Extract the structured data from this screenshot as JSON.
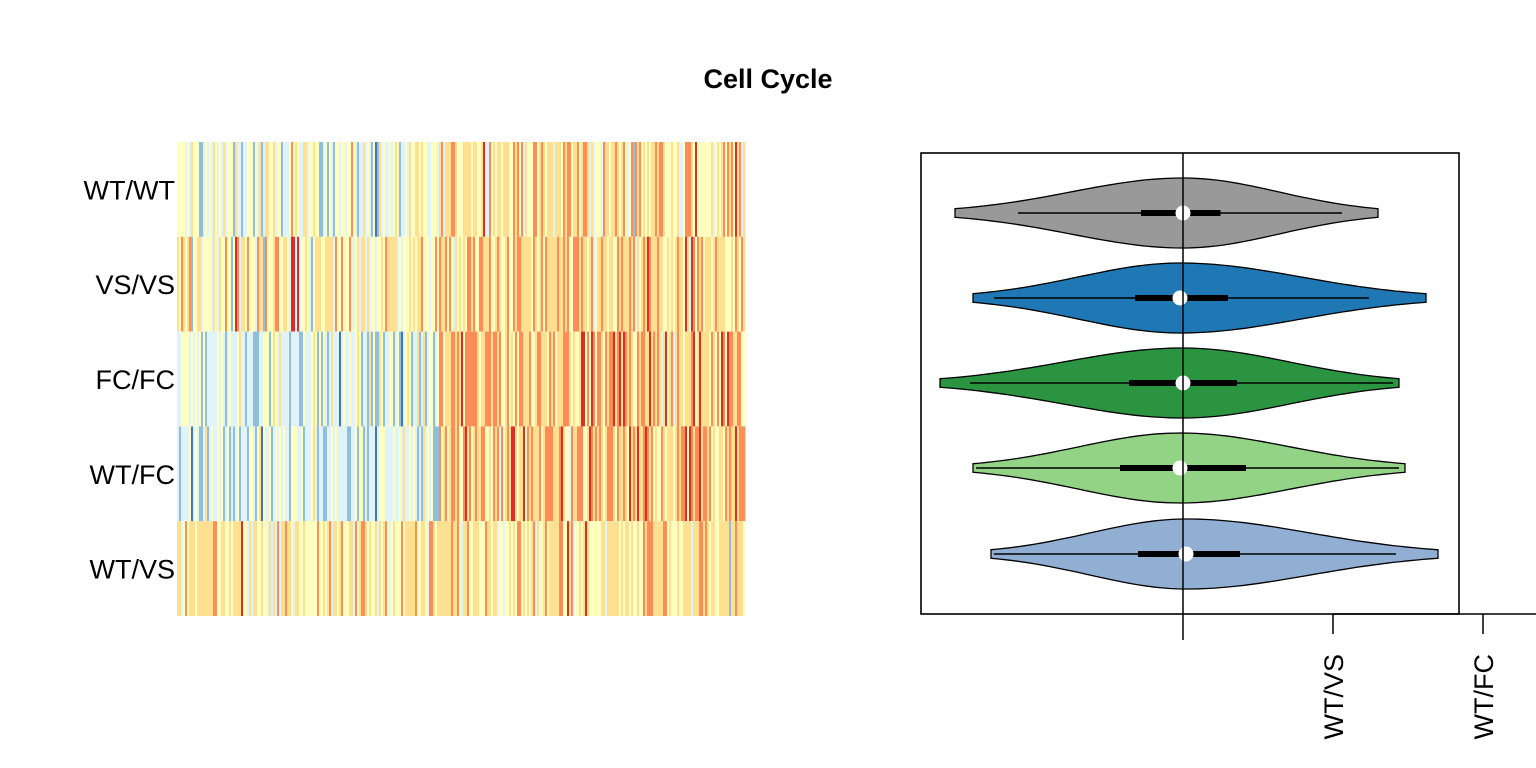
{
  "chart_data": [
    {
      "type": "heatmap",
      "title": "Cell Cycle",
      "rows": [
        "WT/WT",
        "VS/VS",
        "FC/FC",
        "WT/FC",
        "WT/VS"
      ],
      "columns_note": "",
      "palette": [
        "#4575b4",
        "#91bfdb",
        "#e0f3f8",
        "#ffffbf",
        "#fee090",
        "#fc8d59",
        "#d73027"
      ],
      "row_profiles": [
        {
          "row": "WT/WT",
          "left_block_mean": 0.42,
          "right_block_mean": 0.62,
          "spread": 0.14
        },
        {
          "row": "VS/VS",
          "left_block_mean": 0.56,
          "right_block_mean": 0.64,
          "spread": 0.13
        },
        {
          "row": "FC/FC",
          "left_block_mean": 0.38,
          "right_block_mean": 0.72,
          "spread": 0.14
        },
        {
          "row": "WT/FC",
          "left_block_mean": 0.36,
          "right_block_mean": 0.73,
          "spread": 0.14
        },
        {
          "row": "WT/VS",
          "left_block_mean": 0.6,
          "right_block_mean": 0.66,
          "spread": 0.12
        }
      ]
    },
    {
      "type": "violin",
      "orientation": "horizontal",
      "xlim": [
        -1.75,
        1.85
      ],
      "reference_line": 0,
      "x_ticks": [
        {
          "value": 1.0,
          "label": "WT/VS"
        },
        {
          "value": 2.0,
          "label": "WT/FC"
        }
      ],
      "series": [
        {
          "group": "WT/WT",
          "color": "#999999",
          "min": -1.52,
          "max": 1.3,
          "whisker_low": -1.1,
          "whisker_high": 1.06,
          "q1": -0.28,
          "q3": 0.25,
          "median": 0.0,
          "peak_width": 0.38
        },
        {
          "group": "VS/VS",
          "color": "#1f78b4",
          "min": -1.4,
          "max": 1.62,
          "whisker_low": -1.26,
          "whisker_high": 1.24,
          "q1": -0.32,
          "q3": 0.3,
          "median": -0.02,
          "peak_width": 0.4
        },
        {
          "group": "FC/FC",
          "color": "#2a9441",
          "min": -1.62,
          "max": 1.44,
          "whisker_low": -1.42,
          "whisker_high": 1.4,
          "q1": -0.36,
          "q3": 0.36,
          "median": 0.0,
          "peak_width": 0.4
        },
        {
          "group": "WT/FC",
          "color": "#93d385",
          "min": -1.4,
          "max": 1.48,
          "whisker_low": -1.38,
          "whisker_high": 1.44,
          "q1": -0.42,
          "q3": 0.42,
          "median": -0.02,
          "peak_width": 0.38
        },
        {
          "group": "WT/VS",
          "color": "#91aed3",
          "min": -1.28,
          "max": 1.7,
          "whisker_low": -1.26,
          "whisker_high": 1.42,
          "q1": -0.3,
          "q3": 0.38,
          "median": 0.02,
          "peak_width": 0.4
        }
      ]
    }
  ]
}
